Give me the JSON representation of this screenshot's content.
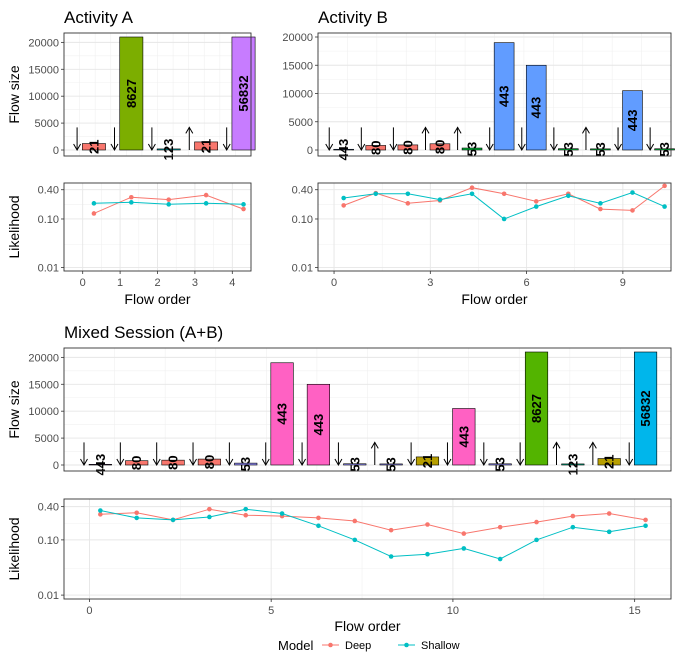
{
  "legend": {
    "title": "Model",
    "entries": [
      {
        "name": "Deep",
        "color": "#F8766D"
      },
      {
        "name": "Shallow",
        "color": "#00BFC4"
      }
    ]
  },
  "chart_data": [
    {
      "id": "activity-a-size",
      "type": "bar",
      "title": "Activity A",
      "ylabel": "Flow size",
      "xlabel": "",
      "ylim": [
        0,
        21000
      ],
      "y_ticks": [
        0,
        5000,
        10000,
        15000,
        20000
      ],
      "y_tick_labels": [
        "0",
        "5000",
        "10000",
        "15000",
        "20000"
      ],
      "xlim": [
        -0.5,
        4.5
      ],
      "bars": [
        {
          "x": 0,
          "value": 1200,
          "label": "21",
          "color": "#F8766D",
          "arrow": "down"
        },
        {
          "x": 1,
          "value": 21000,
          "label": "8627",
          "color": "#7CAE00",
          "arrow": "down"
        },
        {
          "x": 2,
          "value": 200,
          "label": "123",
          "color": "#00BFC4",
          "arrow": "down"
        },
        {
          "x": 3,
          "value": 1500,
          "label": "21",
          "color": "#F8766D",
          "arrow": "up"
        },
        {
          "x": 4,
          "value": 21000,
          "label": "56832",
          "color": "#C77CFF",
          "arrow": "down"
        }
      ]
    },
    {
      "id": "activity-b-size",
      "type": "bar",
      "title": "Activity B",
      "ylabel": "",
      "xlabel": "",
      "ylim": [
        0,
        20000
      ],
      "y_ticks": [
        0,
        5000,
        10000,
        15000,
        20000
      ],
      "y_tick_labels": [
        "0",
        "5000",
        "10000",
        "15000",
        "20000"
      ],
      "xlim": [
        -0.5,
        10.5
      ],
      "bars": [
        {
          "x": 0,
          "value": 130,
          "label": "443",
          "color": "#619CFF",
          "arrow": "down"
        },
        {
          "x": 1,
          "value": 800,
          "label": "80",
          "color": "#F8766D",
          "arrow": "down"
        },
        {
          "x": 2,
          "value": 900,
          "label": "80",
          "color": "#F8766D",
          "arrow": "down"
        },
        {
          "x": 3,
          "value": 1100,
          "label": "80",
          "color": "#F8766D",
          "arrow": "up"
        },
        {
          "x": 4,
          "value": 350,
          "label": "53",
          "color": "#00BA38",
          "arrow": "up"
        },
        {
          "x": 5,
          "value": 19000,
          "label": "443",
          "color": "#619CFF",
          "arrow": "down"
        },
        {
          "x": 6,
          "value": 15000,
          "label": "443",
          "color": "#619CFF",
          "arrow": "down"
        },
        {
          "x": 7,
          "value": 230,
          "label": "53",
          "color": "#00BA38",
          "arrow": "down"
        },
        {
          "x": 8,
          "value": 200,
          "label": "53",
          "color": "#00BA38",
          "arrow": "up"
        },
        {
          "x": 9,
          "value": 10500,
          "label": "443",
          "color": "#619CFF",
          "arrow": "down"
        },
        {
          "x": 10,
          "value": 220,
          "label": "53",
          "color": "#00BA38",
          "arrow": "down"
        }
      ]
    },
    {
      "id": "activity-a-likelihood",
      "type": "line",
      "title": "",
      "xlabel": "Flow order",
      "ylabel": "Likelihood",
      "y_scale": "log10",
      "ylim": [
        0.0085,
        0.55
      ],
      "y_ticks": [
        0.01,
        0.1,
        0.4
      ],
      "y_tick_labels": [
        "0.01",
        "0.10",
        "0.40"
      ],
      "xlim": [
        -0.5,
        4.5
      ],
      "x_ticks": [
        0,
        1,
        2,
        3,
        4
      ],
      "x_tick_labels": [
        "0",
        "1",
        "2",
        "3",
        "4"
      ],
      "series": [
        {
          "name": "Deep",
          "color": "#F8766D",
          "x": [
            0.3,
            1.3,
            2.3,
            3.3,
            4.3
          ],
          "y": [
            0.13,
            0.28,
            0.25,
            0.31,
            0.16
          ]
        },
        {
          "name": "Shallow",
          "color": "#00BFC4",
          "x": [
            0.3,
            1.3,
            2.3,
            3.3,
            4.3
          ],
          "y": [
            0.21,
            0.22,
            0.2,
            0.21,
            0.2
          ]
        }
      ]
    },
    {
      "id": "activity-b-likelihood",
      "type": "line",
      "title": "",
      "xlabel": "Flow order",
      "ylabel": "",
      "y_scale": "log10",
      "ylim": [
        0.0085,
        0.55
      ],
      "y_ticks": [
        0.01,
        0.1,
        0.4
      ],
      "y_tick_labels": [
        "0.01",
        "0.10",
        "0.40"
      ],
      "xlim": [
        -0.5,
        10.5
      ],
      "x_ticks": [
        0,
        3,
        6,
        9
      ],
      "x_tick_labels": [
        "0",
        "3",
        "6",
        "9"
      ],
      "series": [
        {
          "name": "Deep",
          "color": "#F8766D",
          "x": [
            0.3,
            1.3,
            2.3,
            3.3,
            4.3,
            5.3,
            6.3,
            7.3,
            8.3,
            9.3,
            10.3
          ],
          "y": [
            0.19,
            0.34,
            0.21,
            0.24,
            0.44,
            0.33,
            0.23,
            0.33,
            0.16,
            0.15,
            0.48
          ]
        },
        {
          "name": "Shallow",
          "color": "#00BFC4",
          "x": [
            0.3,
            1.3,
            2.3,
            3.3,
            4.3,
            5.3,
            6.3,
            7.3,
            8.3,
            9.3,
            10.3
          ],
          "y": [
            0.27,
            0.33,
            0.33,
            0.25,
            0.33,
            0.1,
            0.18,
            0.3,
            0.21,
            0.35,
            0.18
          ]
        }
      ]
    },
    {
      "id": "mixed-session-size",
      "type": "bar",
      "title": "Mixed Session (A+B)",
      "ylabel": "Flow size",
      "xlabel": "",
      "ylim": [
        0,
        21000
      ],
      "y_ticks": [
        0,
        5000,
        10000,
        15000,
        20000
      ],
      "y_tick_labels": [
        "0",
        "5000",
        "10000",
        "15000",
        "20000"
      ],
      "xlim": [
        -0.7,
        16.0
      ],
      "bars": [
        {
          "x": 0,
          "value": 130,
          "label": "443",
          "color": "#C77CFF",
          "arrow": "down"
        },
        {
          "x": 1,
          "value": 800,
          "label": "80",
          "color": "#F8766D",
          "arrow": "down"
        },
        {
          "x": 2,
          "value": 900,
          "label": "80",
          "color": "#F8766D",
          "arrow": "down"
        },
        {
          "x": 3,
          "value": 1100,
          "label": "80",
          "color": "#F8766D",
          "arrow": "down"
        },
        {
          "x": 4,
          "value": 350,
          "label": "53",
          "color": "#9590FF",
          "arrow": "down"
        },
        {
          "x": 5,
          "value": 19000,
          "label": "443",
          "color": "#FF61C3",
          "arrow": "down"
        },
        {
          "x": 6,
          "value": 15000,
          "label": "443",
          "color": "#FF61C3",
          "arrow": "down"
        },
        {
          "x": 7,
          "value": 230,
          "label": "53",
          "color": "#9590FF",
          "arrow": "down"
        },
        {
          "x": 8,
          "value": 200,
          "label": "53",
          "color": "#9590FF",
          "arrow": "up"
        },
        {
          "x": 9,
          "value": 1500,
          "label": "21",
          "color": "#B79F00",
          "arrow": "down"
        },
        {
          "x": 10,
          "value": 10500,
          "label": "443",
          "color": "#FF61C3",
          "arrow": "down"
        },
        {
          "x": 11,
          "value": 220,
          "label": "53",
          "color": "#9590FF",
          "arrow": "down"
        },
        {
          "x": 12,
          "value": 21000,
          "label": "8627",
          "color": "#53B400",
          "arrow": "down"
        },
        {
          "x": 13,
          "value": 200,
          "label": "123",
          "color": "#00C094",
          "arrow": "up"
        },
        {
          "x": 14,
          "value": 1200,
          "label": "21",
          "color": "#B79F00",
          "arrow": "up"
        },
        {
          "x": 15,
          "value": 21000,
          "label": "56832",
          "color": "#00B6EB",
          "arrow": "down"
        }
      ]
    },
    {
      "id": "mixed-session-likelihood",
      "type": "line",
      "title": "",
      "xlabel": "Flow order",
      "ylabel": "Likelihood",
      "y_scale": "log10",
      "ylim": [
        0.0085,
        0.55
      ],
      "y_ticks": [
        0.01,
        0.1,
        0.4
      ],
      "y_tick_labels": [
        "0.01",
        "0.10",
        "0.40"
      ],
      "xlim": [
        -0.7,
        16.0
      ],
      "x_ticks": [
        0,
        5,
        10,
        15
      ],
      "x_tick_labels": [
        "0",
        "5",
        "10",
        "15"
      ],
      "series": [
        {
          "name": "Deep",
          "color": "#F8766D",
          "x": [
            0.3,
            1.3,
            2.3,
            3.3,
            4.3,
            5.3,
            6.3,
            7.3,
            8.3,
            9.3,
            10.3,
            11.3,
            12.3,
            13.3,
            14.3,
            15.3
          ],
          "y": [
            0.29,
            0.31,
            0.23,
            0.36,
            0.28,
            0.27,
            0.25,
            0.22,
            0.15,
            0.19,
            0.13,
            0.17,
            0.21,
            0.27,
            0.3,
            0.23
          ]
        },
        {
          "name": "Shallow",
          "color": "#00BFC4",
          "x": [
            0.3,
            1.3,
            2.3,
            3.3,
            4.3,
            5.3,
            6.3,
            7.3,
            8.3,
            9.3,
            10.3,
            11.3,
            12.3,
            13.3,
            14.3,
            15.3
          ],
          "y": [
            0.34,
            0.25,
            0.23,
            0.26,
            0.36,
            0.3,
            0.18,
            0.1,
            0.05,
            0.055,
            0.07,
            0.045,
            0.1,
            0.17,
            0.14,
            0.18
          ]
        }
      ]
    }
  ]
}
